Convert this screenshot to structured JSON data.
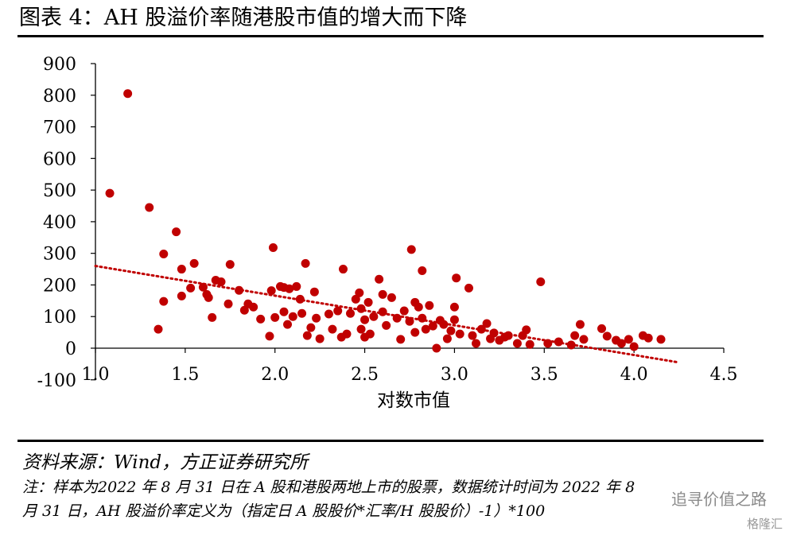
{
  "header": {
    "title": "图表 4：AH 股溢价率随港股市值的增大而下降"
  },
  "chart_data": {
    "type": "scatter",
    "title": "",
    "xlabel": "对数市值",
    "ylabel": "",
    "xlim": [
      1.0,
      4.5
    ],
    "ylim": [
      -100,
      900
    ],
    "x_ticks": [
      "1.0",
      "1.5",
      "2.0",
      "2.5",
      "3.0",
      "3.5",
      "4.0",
      "4.5"
    ],
    "y_ticks": [
      "-100",
      "0",
      "100",
      "200",
      "300",
      "400",
      "500",
      "600",
      "700",
      "800",
      "900"
    ],
    "point_color": "#c00000",
    "trendline": {
      "style": "dotted",
      "color": "#c00000",
      "x": [
        1.0,
        4.25
      ],
      "y": [
        260,
        -45
      ]
    },
    "points": [
      [
        1.08,
        490
      ],
      [
        1.18,
        805
      ],
      [
        1.3,
        445
      ],
      [
        1.35,
        60
      ],
      [
        1.38,
        148
      ],
      [
        1.38,
        298
      ],
      [
        1.45,
        368
      ],
      [
        1.48,
        250
      ],
      [
        1.48,
        165
      ],
      [
        1.53,
        190
      ],
      [
        1.55,
        268
      ],
      [
        1.6,
        193
      ],
      [
        1.62,
        170
      ],
      [
        1.63,
        160
      ],
      [
        1.65,
        97
      ],
      [
        1.67,
        215
      ],
      [
        1.7,
        210
      ],
      [
        1.74,
        140
      ],
      [
        1.75,
        265
      ],
      [
        1.8,
        183
      ],
      [
        1.83,
        120
      ],
      [
        1.85,
        140
      ],
      [
        1.88,
        130
      ],
      [
        1.92,
        92
      ],
      [
        1.97,
        38
      ],
      [
        1.98,
        182
      ],
      [
        1.99,
        318
      ],
      [
        2.0,
        97
      ],
      [
        2.03,
        195
      ],
      [
        2.05,
        192
      ],
      [
        2.05,
        115
      ],
      [
        2.07,
        75
      ],
      [
        2.08,
        188
      ],
      [
        2.1,
        100
      ],
      [
        2.12,
        195
      ],
      [
        2.14,
        155
      ],
      [
        2.15,
        110
      ],
      [
        2.17,
        268
      ],
      [
        2.18,
        40
      ],
      [
        2.2,
        65
      ],
      [
        2.22,
        178
      ],
      [
        2.23,
        95
      ],
      [
        2.25,
        30
      ],
      [
        2.3,
        108
      ],
      [
        2.32,
        60
      ],
      [
        2.35,
        118
      ],
      [
        2.37,
        35
      ],
      [
        2.38,
        250
      ],
      [
        2.4,
        45
      ],
      [
        2.42,
        110
      ],
      [
        2.45,
        155
      ],
      [
        2.47,
        175
      ],
      [
        2.48,
        125
      ],
      [
        2.48,
        60
      ],
      [
        2.5,
        90
      ],
      [
        2.5,
        35
      ],
      [
        2.52,
        145
      ],
      [
        2.53,
        45
      ],
      [
        2.55,
        100
      ],
      [
        2.58,
        218
      ],
      [
        2.6,
        170
      ],
      [
        2.6,
        115
      ],
      [
        2.62,
        72
      ],
      [
        2.65,
        160
      ],
      [
        2.68,
        95
      ],
      [
        2.7,
        28
      ],
      [
        2.72,
        118
      ],
      [
        2.75,
        85
      ],
      [
        2.76,
        312
      ],
      [
        2.78,
        145
      ],
      [
        2.78,
        50
      ],
      [
        2.8,
        130
      ],
      [
        2.82,
        245
      ],
      [
        2.82,
        95
      ],
      [
        2.84,
        60
      ],
      [
        2.86,
        135
      ],
      [
        2.88,
        70
      ],
      [
        2.9,
        0
      ],
      [
        2.92,
        88
      ],
      [
        2.94,
        75
      ],
      [
        2.96,
        30
      ],
      [
        2.98,
        55
      ],
      [
        3.0,
        90
      ],
      [
        3.0,
        130
      ],
      [
        3.01,
        222
      ],
      [
        3.03,
        45
      ],
      [
        3.08,
        190
      ],
      [
        3.1,
        40
      ],
      [
        3.12,
        15
      ],
      [
        3.15,
        60
      ],
      [
        3.18,
        78
      ],
      [
        3.2,
        30
      ],
      [
        3.22,
        48
      ],
      [
        3.25,
        25
      ],
      [
        3.28,
        35
      ],
      [
        3.3,
        40
      ],
      [
        3.35,
        15
      ],
      [
        3.38,
        40
      ],
      [
        3.4,
        58
      ],
      [
        3.42,
        12
      ],
      [
        3.48,
        210
      ],
      [
        3.52,
        15
      ],
      [
        3.58,
        20
      ],
      [
        3.65,
        10
      ],
      [
        3.67,
        40
      ],
      [
        3.7,
        75
      ],
      [
        3.72,
        28
      ],
      [
        3.82,
        62
      ],
      [
        3.85,
        38
      ],
      [
        3.9,
        25
      ],
      [
        3.93,
        15
      ],
      [
        3.97,
        28
      ],
      [
        4.0,
        5
      ],
      [
        4.05,
        40
      ],
      [
        4.08,
        32
      ],
      [
        4.15,
        28
      ]
    ]
  },
  "footer": {
    "source": "资料来源：Wind，方正证券研究所",
    "note_line1": "注：样本为2022 年 8 月 31 日在 A 股和港股两地上市的股票，数据统计时间为 2022 年 8",
    "note_line2": "月 31 日，AH 股溢价率定义为（指定日 A 股股价*汇率/H 股股价）-1）*100",
    "watermark": "追寻价值之路",
    "watermark2": "格隆汇"
  }
}
